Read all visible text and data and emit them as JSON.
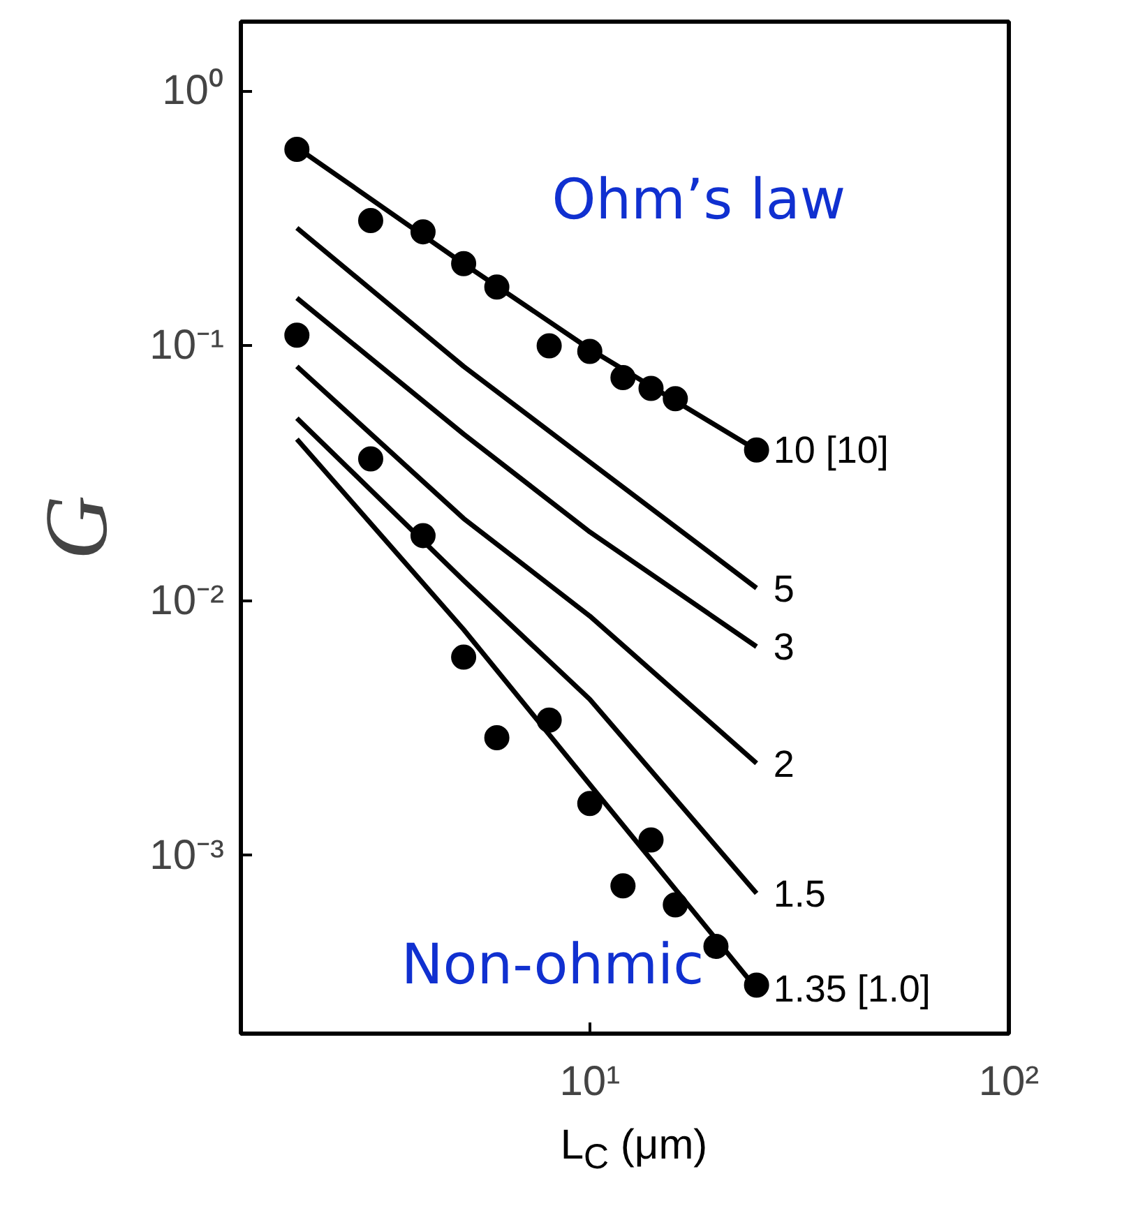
{
  "chart_data": {
    "type": "line",
    "xlabel": "L$_{C}$ (μm)",
    "ylabel": "G",
    "log": "xy",
    "grid": false,
    "xlim": [
      1.47,
      100
    ],
    "ylim": [
      0.0002,
      1.87
    ],
    "xticks": [
      {
        "value": 10,
        "label": "10¹"
      },
      {
        "value": 100,
        "label": "10²"
      }
    ],
    "yticks": [
      {
        "value": 0.001,
        "label": "10⁻³"
      },
      {
        "value": 0.01,
        "label": "10⁻²"
      },
      {
        "value": 0.1,
        "label": "10⁻¹"
      },
      {
        "value": 1,
        "label": "10⁰"
      }
    ],
    "annotations": [
      "Ohm’s law",
      "Non-ohmic"
    ],
    "series": [
      {
        "name": "10 [10]",
        "type": "line",
        "marker": "none",
        "color": "#000000",
        "x": [
          2,
          5,
          10,
          25
        ],
        "values": [
          0.6,
          0.21,
          0.097,
          0.039
        ]
      },
      {
        "name": "5",
        "type": "line",
        "marker": "none",
        "color": "#000000",
        "x": [
          2,
          5,
          10,
          25
        ],
        "values": [
          0.29,
          0.083,
          0.035,
          0.0112
        ]
      },
      {
        "name": "3",
        "type": "line",
        "marker": "none",
        "color": "#000000",
        "x": [
          2,
          5,
          10,
          25
        ],
        "values": [
          0.154,
          0.045,
          0.0186,
          0.0066
        ]
      },
      {
        "name": "2",
        "type": "line",
        "marker": "none",
        "color": "#000000",
        "x": [
          2,
          5,
          10,
          25
        ],
        "values": [
          0.083,
          0.021,
          0.0087,
          0.0023
        ]
      },
      {
        "name": "1.5",
        "type": "line",
        "marker": "none",
        "color": "#000000",
        "x": [
          2,
          5,
          10,
          25
        ],
        "values": [
          0.052,
          0.012,
          0.0041,
          0.00071
        ]
      },
      {
        "name": "1.35 [1.0]",
        "type": "line",
        "marker": "none",
        "color": "#000000",
        "x": [
          2,
          5,
          10,
          25
        ],
        "values": [
          0.043,
          0.0077,
          0.0019,
          0.0003
        ]
      },
      {
        "type": "scatter",
        "marker": "circle",
        "color": "#000000",
        "x": [
          2,
          3,
          4,
          5,
          6,
          8,
          10,
          12,
          14,
          16,
          25
        ],
        "values": [
          0.59,
          0.31,
          0.28,
          0.21,
          0.17,
          0.1,
          0.095,
          0.075,
          0.068,
          0.062,
          0.039
        ]
      },
      {
        "type": "scatter",
        "marker": "circle",
        "color": "#000000",
        "x": [
          2,
          3,
          4,
          5,
          6,
          8,
          10,
          12,
          14,
          16,
          20,
          25
        ],
        "values": [
          0.11,
          0.036,
          0.018,
          0.006,
          0.0029,
          0.0034,
          0.0016,
          0.00076,
          0.00115,
          0.00064,
          0.00044,
          0.00031
        ]
      }
    ]
  }
}
